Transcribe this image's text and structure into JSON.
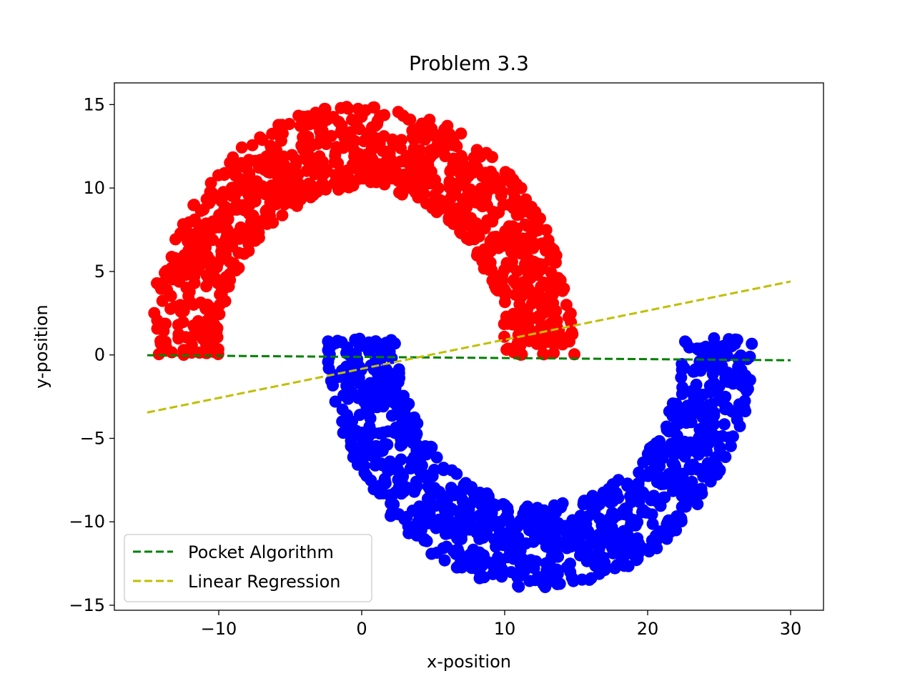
{
  "chart_data": {
    "type": "scatter",
    "title": "Problem 3.3",
    "xlabel": "x-position",
    "ylabel": "y-position",
    "xlim": [
      -17.3,
      32.3
    ],
    "ylim": [
      -15.3,
      16.3
    ],
    "xticks": [
      -10,
      0,
      10,
      20,
      30
    ],
    "yticks": [
      -15,
      -10,
      -5,
      0,
      5,
      10,
      15
    ],
    "grid": false,
    "legend_position": "lower-left",
    "series": [
      {
        "kind": "points",
        "color": "#ff0000",
        "description": "upper half-moon",
        "center": [
          0,
          0
        ],
        "radius_range": [
          10,
          15
        ],
        "angle_range_deg": [
          0,
          180
        ],
        "count": 1000,
        "seed": 7
      },
      {
        "kind": "points",
        "color": "#0000ff",
        "description": "lower half-moon",
        "center": [
          12.5,
          1
        ],
        "radius_range": [
          10,
          15
        ],
        "angle_range_deg": [
          180,
          360
        ],
        "count": 1000,
        "seed": 13
      },
      {
        "kind": "line",
        "name": "Pocket Algorithm",
        "color": "#008000",
        "style": "dashed",
        "x": [
          -15,
          30
        ],
        "y": [
          -0.02,
          -0.32
        ]
      },
      {
        "kind": "line",
        "name": "Linear Regression",
        "color": "#bfbf00",
        "style": "dashed",
        "x": [
          -15,
          30
        ],
        "y": [
          -3.45,
          4.4
        ]
      }
    ]
  }
}
